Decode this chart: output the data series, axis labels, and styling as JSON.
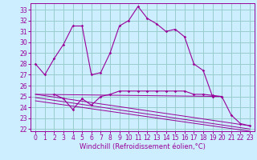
{
  "background_color": "#cceeff",
  "grid_color": "#99cccc",
  "line_color": "#990099",
  "xlim": [
    -0.5,
    23.5
  ],
  "ylim": [
    21.8,
    33.6
  ],
  "yticks": [
    22,
    23,
    24,
    25,
    26,
    27,
    28,
    29,
    30,
    31,
    32,
    33
  ],
  "xticks": [
    0,
    1,
    2,
    3,
    4,
    5,
    6,
    7,
    8,
    9,
    10,
    11,
    12,
    13,
    14,
    15,
    16,
    17,
    18,
    19,
    20,
    21,
    22,
    23
  ],
  "xlabel": "Windchill (Refroidissement éolien,°C)",
  "series": [
    {
      "x": [
        0,
        1,
        2,
        3,
        4,
        5,
        6,
        7,
        8,
        9,
        10,
        11,
        12,
        13,
        14,
        15,
        16,
        17,
        18,
        19,
        20,
        21,
        22,
        23
      ],
      "y": [
        28.0,
        27.0,
        28.5,
        29.8,
        31.5,
        31.5,
        27.0,
        27.2,
        29.0,
        31.5,
        32.0,
        33.3,
        32.2,
        31.7,
        31.0,
        31.2,
        30.5,
        28.0,
        27.4,
        25.0,
        25.0,
        23.3,
        22.5,
        22.3
      ],
      "marker": true
    },
    {
      "x": [
        2,
        3,
        4,
        5,
        6,
        7,
        8,
        9,
        10,
        11,
        12,
        13,
        14,
        15,
        16,
        17,
        18,
        19,
        20
      ],
      "y": [
        25.2,
        24.8,
        23.8,
        24.8,
        24.2,
        25.0,
        25.2,
        25.5,
        25.5,
        25.5,
        25.5,
        25.5,
        25.5,
        25.5,
        25.5,
        25.2,
        25.2,
        25.1,
        25.0
      ],
      "marker": true
    },
    {
      "x": [
        0,
        20
      ],
      "y": [
        25.2,
        25.0
      ],
      "marker": false
    },
    {
      "x": [
        0,
        23
      ],
      "y": [
        25.2,
        22.3
      ],
      "marker": false
    },
    {
      "x": [
        0,
        23
      ],
      "y": [
        24.9,
        22.0
      ],
      "marker": false
    },
    {
      "x": [
        0,
        23
      ],
      "y": [
        24.6,
        21.8
      ],
      "marker": false
    }
  ],
  "tick_fontsize": 5.5,
  "xlabel_fontsize": 6.0
}
